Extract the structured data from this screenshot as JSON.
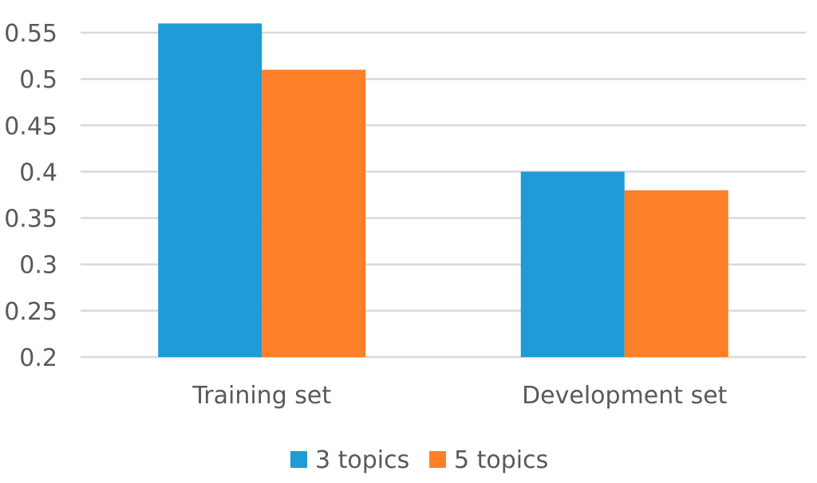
{
  "chart_data": {
    "type": "bar",
    "categories": [
      "Training set",
      "Development set"
    ],
    "series": [
      {
        "name": "3 topics",
        "values": [
          0.56,
          0.4
        ],
        "color": "#1f9bd7"
      },
      {
        "name": "5 topics",
        "values": [
          0.51,
          0.38
        ],
        "color": "#fd7f28"
      }
    ],
    "ylim": [
      0.2,
      0.55
    ],
    "yticks": [
      "0.2",
      "0.25",
      "0.3",
      "0.35",
      "0.4",
      "0.45",
      "0.5",
      "0.55"
    ],
    "grid": true,
    "legend_position": "bottom"
  }
}
